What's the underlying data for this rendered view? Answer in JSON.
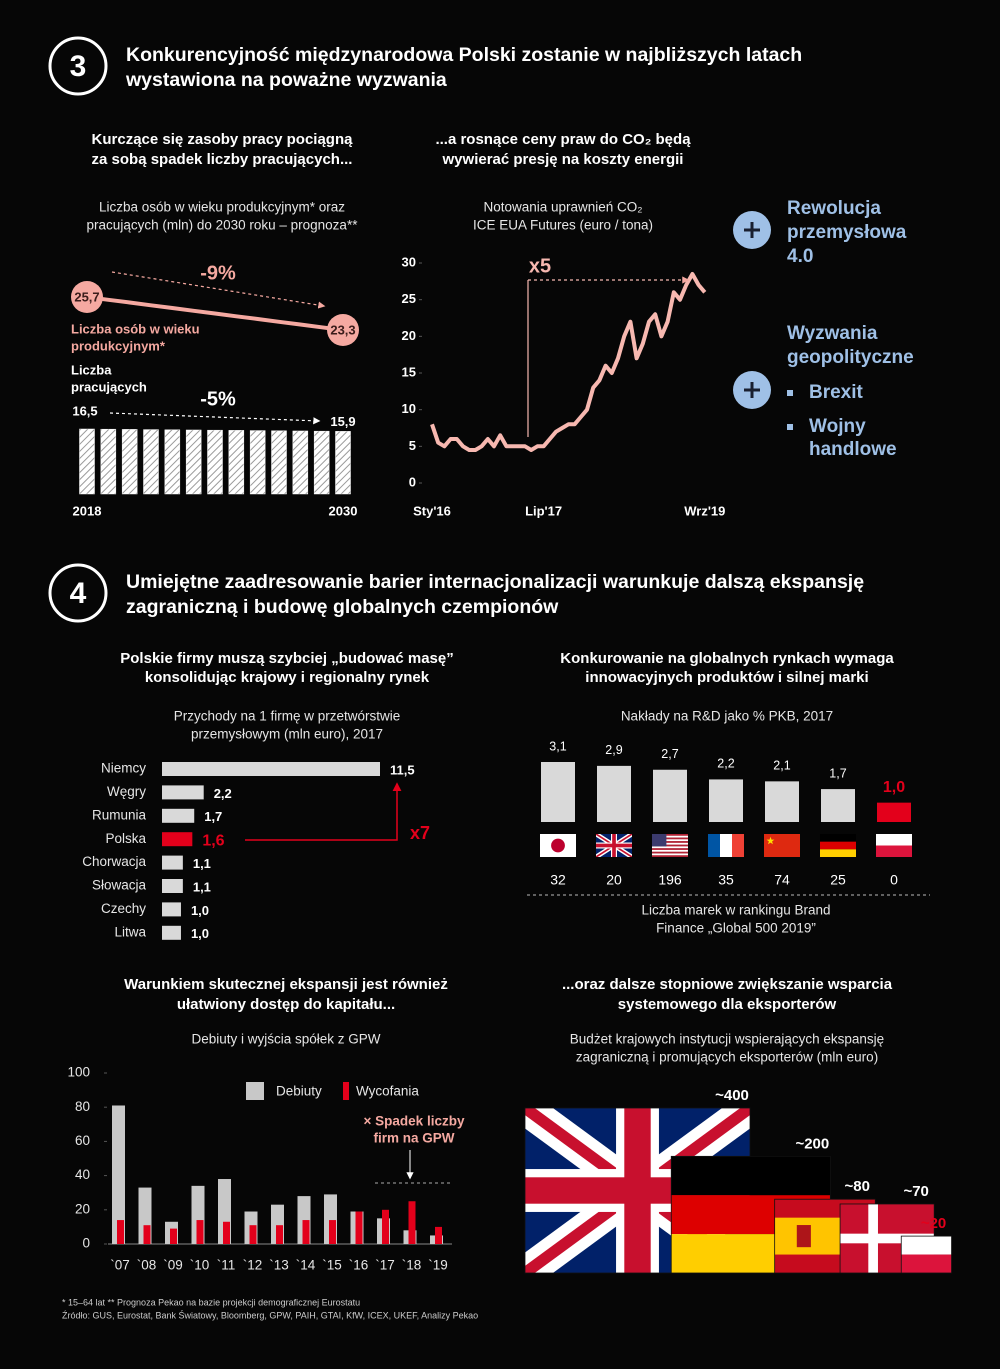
{
  "section3": {
    "number": "3",
    "title": [
      "Konkurencyjność międzynarodowa Polski zostanie w najbliższych latach",
      "wystawiona na poważne wyzwania"
    ]
  },
  "section4": {
    "number": "4",
    "title": [
      "Umiejętne zaadresowanie barier internacjonalizacji warunkuje dalszą ekspansję",
      "zagraniczną i budowę globalnych czempionów"
    ]
  },
  "sidebar": {
    "color": "#9fc0e6",
    "items": [
      {
        "label": [
          "Rewolucja",
          "przemysłowa",
          "4.0"
        ]
      },
      {
        "label": [
          "Wyzwania",
          "geopolityczne"
        ],
        "bullets": [
          [
            "Brexit"
          ],
          [
            "Wojny",
            "handlowe"
          ]
        ]
      }
    ]
  },
  "footnotes": [
    "* 15–64 lat   ** Prognoza Pekao na bazie projekcji demograficznej Eurostatu",
    "Źródło: GUS, Eurostat, Bank Światowy, Bloomberg, GPW, PAIH, GTAI, KfW, ICEX, UKEF, Analizy Pekao"
  ],
  "chart_data": [
    {
      "type": "combo",
      "title": [
        "Kurczące się zasoby pracy pociągną",
        "za sobą spadek liczby pracujących..."
      ],
      "subtitle": [
        "Liczba osób w wieku produkcyjnym* oraz",
        "pracujących (mln) do 2030 roku – prognoza**"
      ],
      "categories": [
        "2018",
        null,
        null,
        null,
        null,
        null,
        null,
        null,
        null,
        null,
        null,
        null,
        "2030"
      ],
      "series": [
        {
          "name": [
            "Liczba osób w wieku",
            "produkcyjnym*"
          ],
          "type": "line",
          "color": "#f5a9a1",
          "values": [
            25.7,
            25.5,
            25.3,
            25.1,
            24.9,
            24.7,
            24.5,
            24.3,
            24.1,
            23.9,
            23.7,
            23.5,
            23.3
          ],
          "value_labels": [
            "25,7",
            null,
            null,
            null,
            null,
            null,
            null,
            null,
            null,
            null,
            null,
            null,
            "23,3"
          ],
          "change": "-9%"
        },
        {
          "name": [
            "Liczba",
            "pracujących"
          ],
          "type": "bar",
          "color": "#ffffff",
          "values": [
            16.5,
            16.45,
            16.4,
            16.35,
            16.3,
            16.25,
            16.2,
            16.15,
            16.1,
            16.05,
            16.0,
            15.95,
            15.9
          ],
          "value_labels": [
            "16,5",
            null,
            null,
            null,
            null,
            null,
            null,
            null,
            null,
            null,
            null,
            null,
            "15,9"
          ],
          "change": "-5%"
        }
      ]
    },
    {
      "type": "line",
      "title": [
        "...a rosnące ceny praw do CO₂ będą",
        "wywierać presję na koszty energii"
      ],
      "subtitle": [
        "Notowania uprawnień CO₂",
        "ICE EUA Futures (euro / tona)"
      ],
      "categories": [
        "Sty'16",
        null,
        null,
        null,
        null,
        null,
        null,
        null,
        null,
        null,
        null,
        null,
        null,
        null,
        null,
        null,
        null,
        null,
        "Lip'17",
        null,
        null,
        null,
        null,
        null,
        null,
        null,
        null,
        null,
        null,
        null,
        null,
        null,
        null,
        null,
        null,
        null,
        null,
        null,
        null,
        null,
        null,
        null,
        null,
        null,
        "Wrz'19"
      ],
      "values": [
        8,
        5.5,
        5,
        6,
        6,
        5,
        4.5,
        4.5,
        5,
        6,
        5,
        6.5,
        5,
        5,
        5,
        5,
        4.5,
        5,
        5,
        6,
        7,
        7.5,
        8,
        8,
        9,
        10,
        13,
        14,
        16,
        15,
        17,
        20,
        22,
        17,
        19,
        22,
        23,
        20,
        22,
        26,
        25,
        27,
        28.5,
        27,
        26
      ],
      "color": "#f7b8b0",
      "ylim": [
        0,
        30
      ],
      "yticks": [
        0,
        5,
        10,
        15,
        20,
        25,
        30
      ],
      "annotation": "x5"
    },
    {
      "type": "barh",
      "title": [
        "Polskie firmy muszą szybciej „budować masę”",
        "konsolidując krajowy i regionalny rynek"
      ],
      "subtitle": [
        "Przychody na 1 firmę w przetwórstwie",
        "przemysłowym (mln euro), 2017"
      ],
      "categories": [
        "Niemcy",
        "Węgry",
        "Rumunia",
        "Polska",
        "Chorwacja",
        "Słowacja",
        "Czechy",
        "Litwa"
      ],
      "values": [
        11.5,
        2.2,
        1.7,
        1.6,
        1.1,
        1.1,
        1.0,
        1.0
      ],
      "value_labels": [
        "11,5",
        "2,2",
        "1,7",
        "1,6",
        "1,1",
        "1,1",
        "1,0",
        "1,0"
      ],
      "colors": [
        "#d9d9d9",
        "#d9d9d9",
        "#d9d9d9",
        "#e3001b",
        "#d9d9d9",
        "#d9d9d9",
        "#d9d9d9",
        "#d9d9d9"
      ],
      "annotation": "x7",
      "annotation_color": "#e3001b"
    },
    {
      "type": "bar",
      "title": [
        "Konkurowanie na globalnych rynkach wymaga",
        "innowacyjnych produktów i silnej marki"
      ],
      "subtitle": [
        "Nakłady na R&D jako % PKB, 2017"
      ],
      "flags": [
        "jp",
        "gb",
        "us",
        "fr",
        "cn",
        "de",
        "pl"
      ],
      "values": [
        3.1,
        2.9,
        2.7,
        2.2,
        2.1,
        1.7,
        1.0
      ],
      "value_labels": [
        "3,1",
        "2,9",
        "2,7",
        "2,2",
        "2,1",
        "1,7",
        "1,0"
      ],
      "colors": [
        "#d9d9d9",
        "#d9d9d9",
        "#d9d9d9",
        "#d9d9d9",
        "#d9d9d9",
        "#d9d9d9",
        "#e3001b"
      ],
      "table_row": {
        "label": [
          "Liczba marek w rankingu Brand",
          "Finance „Global 500 2019”"
        ],
        "values": [
          32,
          20,
          196,
          35,
          74,
          25,
          0
        ]
      }
    },
    {
      "type": "groupedbar",
      "title": [
        "Warunkiem skutecznej ekspansji jest również",
        "ułatwiony dostęp do kapitału..."
      ],
      "subtitle": [
        "Debiuty i wyjścia spółek z GPW"
      ],
      "categories": [
        "`07",
        "`08",
        "`09",
        "`10",
        "`11",
        "`12",
        "`13",
        "`14",
        "`15",
        "`16",
        "`17",
        "`18",
        "`19"
      ],
      "series": [
        {
          "name": "Debiuty",
          "color": "#c8c8c8",
          "values": [
            81,
            33,
            13,
            34,
            38,
            19,
            23,
            28,
            29,
            19,
            15,
            8,
            5
          ]
        },
        {
          "name": "Wycofania",
          "color": "#e3001b",
          "values": [
            14,
            11,
            9,
            14,
            13,
            11,
            11,
            14,
            14,
            19,
            20,
            25,
            10
          ]
        }
      ],
      "ylim": [
        0,
        100
      ],
      "yticks": [
        0,
        20,
        40,
        60,
        80,
        100
      ],
      "annotation": [
        "× Spadek liczby",
        "firm na GPW"
      ],
      "annotation_color": "#f5a9a1"
    },
    {
      "type": "proportional",
      "title": [
        "...oraz dalsze stopniowe zwiększanie wsparcia",
        "systemowego dla eksporterów"
      ],
      "subtitle": [
        "Budżet krajowych instytucji wspierających ekspansję",
        "zagraniczną i promujących eksporterów (mln euro)"
      ],
      "flags": [
        "gb",
        "de",
        "es",
        "dk",
        "pl"
      ],
      "values": [
        400,
        200,
        80,
        70,
        20
      ],
      "value_labels": [
        "~400",
        "~200",
        "~80",
        "~70",
        "~20"
      ],
      "label_colors": [
        "#ffffff",
        "#ffffff",
        "#ffffff",
        "#ffffff",
        "#e3001b"
      ]
    }
  ]
}
